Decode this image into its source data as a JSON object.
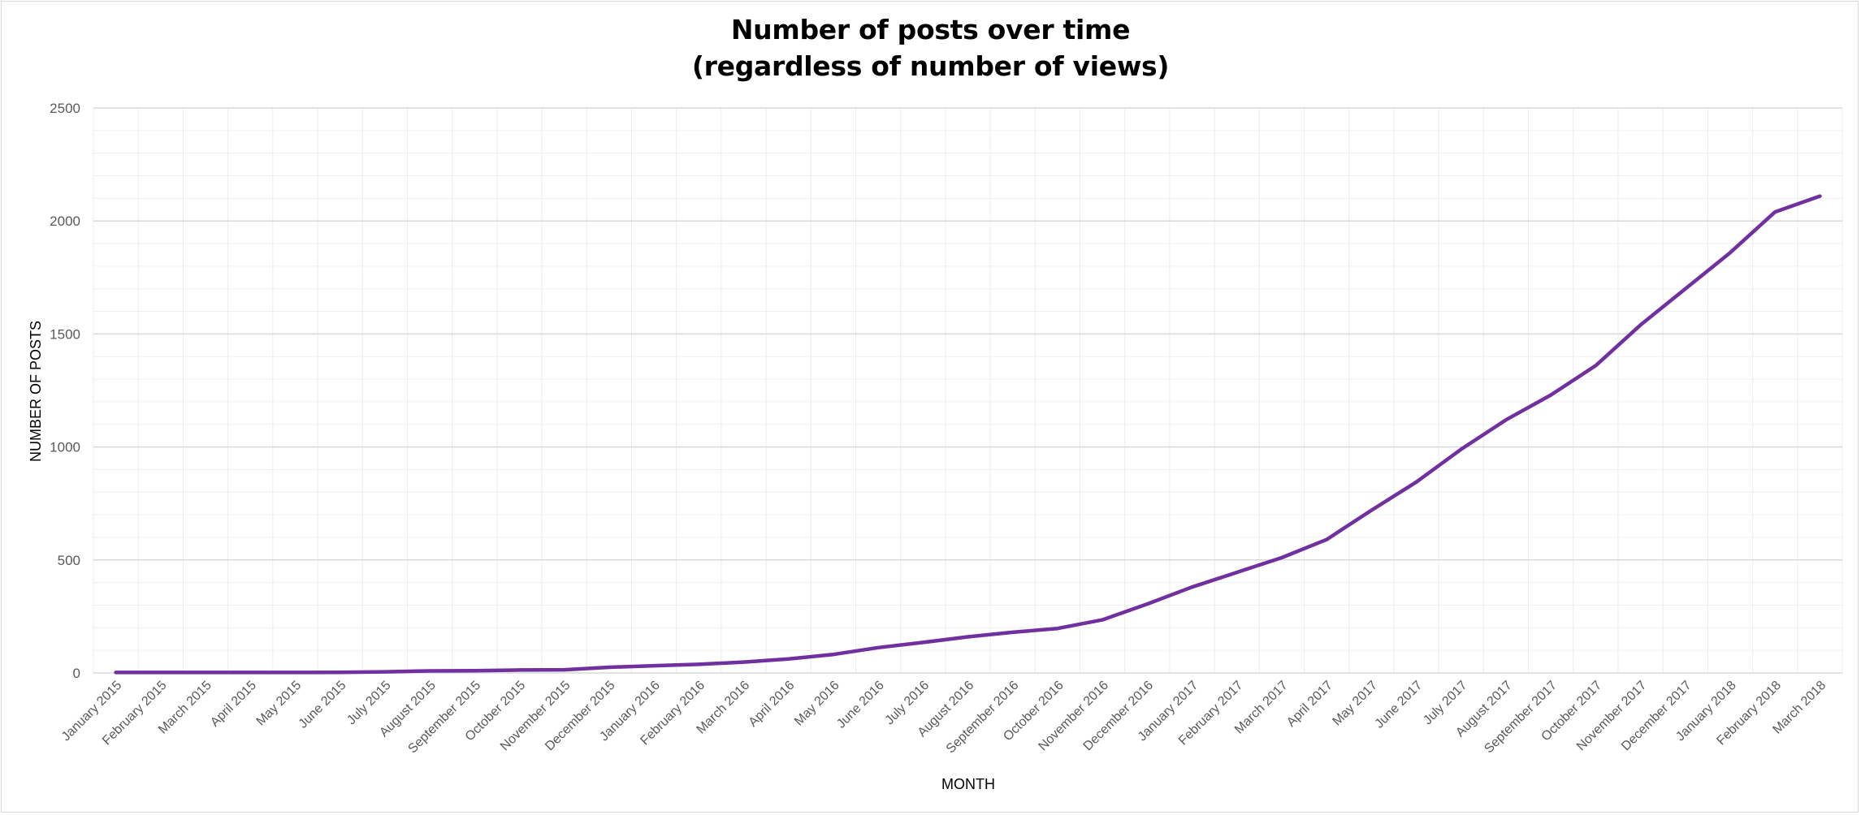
{
  "chart_data": {
    "type": "line",
    "title_line1": "Number of posts over time",
    "title_line2": "(regardless of number of views)",
    "xlabel": "MONTH",
    "ylabel": "NUMBER OF POSTS",
    "ylim": [
      0,
      2500
    ],
    "yticks": [
      "0",
      "500",
      "1000",
      "1500",
      "2000",
      "2500"
    ],
    "grid": "on",
    "line_color": "#7030a0",
    "categories": [
      "January 2015",
      "February 2015",
      "March 2015",
      "April 2015",
      "May 2015",
      "June 2015",
      "July 2015",
      "August 2015",
      "September 2015",
      "October 2015",
      "November 2015",
      "December 2015",
      "January 2016",
      "February 2016",
      "March 2016",
      "April 2016",
      "May 2016",
      "June 2016",
      "July 2016",
      "August 2016",
      "September 2016",
      "October 2016",
      "November 2016",
      "December 2016",
      "January 2017",
      "February 2017",
      "March 2017",
      "April 2017",
      "May 2017",
      "June 2017",
      "July 2017",
      "August 2017",
      "September 2017",
      "October 2017",
      "November 2017",
      "December 2017",
      "January 2018",
      "February 2018",
      "March 2018"
    ],
    "values": [
      2,
      2,
      2,
      2,
      2,
      3,
      5,
      9,
      10,
      13,
      14,
      25,
      32,
      38,
      48,
      62,
      82,
      112,
      135,
      160,
      180,
      197,
      235,
      305,
      380,
      445,
      510,
      590,
      720,
      845,
      990,
      1120,
      1230,
      1360,
      1540,
      1700,
      1860,
      2040,
      2110
    ]
  }
}
